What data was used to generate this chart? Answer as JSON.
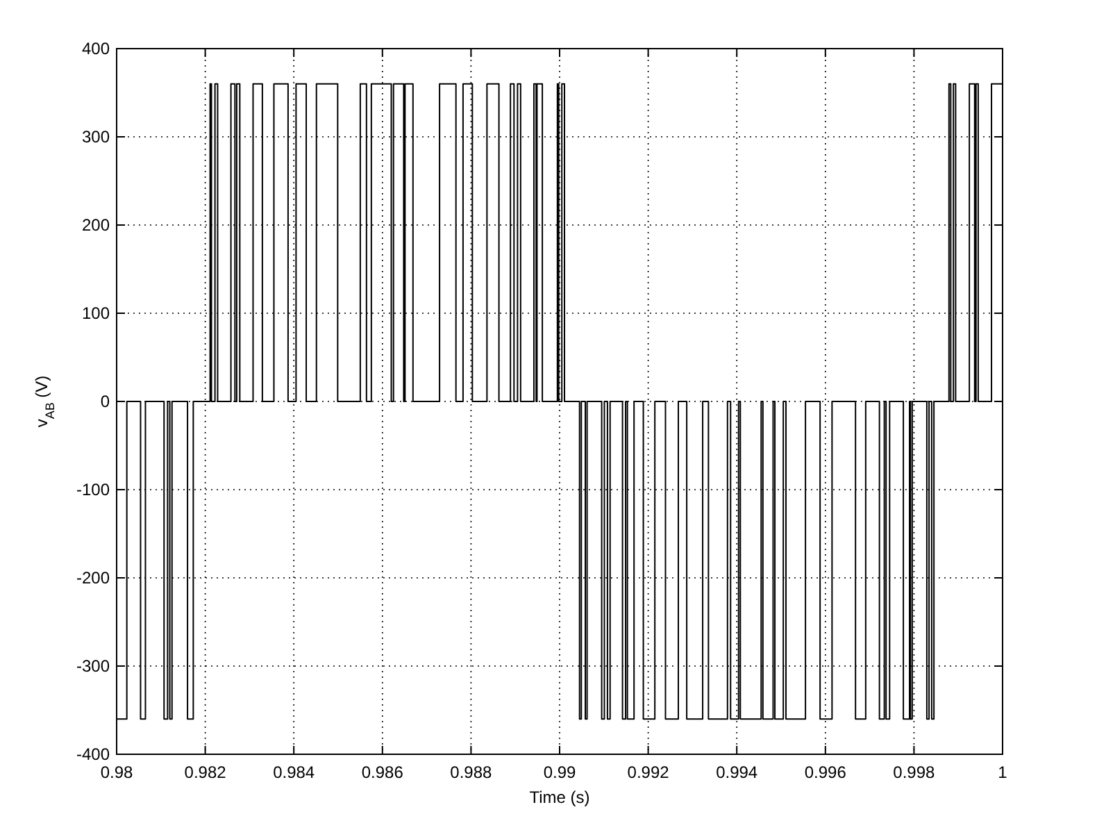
{
  "chart_data": {
    "type": "step",
    "xlabel": "Time (s)",
    "ylabel": "v$_{AB}$ (V)",
    "xlim": [
      0.98,
      1
    ],
    "xticks": [
      0.98,
      0.982,
      0.984,
      0.986,
      0.988,
      0.99,
      0.992,
      0.994,
      0.996,
      0.998,
      1
    ],
    "ylim": [
      -400,
      400
    ],
    "yticks": [
      -400,
      -300,
      -200,
      -100,
      0,
      100,
      200,
      300,
      400
    ],
    "grid": true,
    "marker": "none",
    "line_style": "solid",
    "series": [
      {
        "color": "#000000",
        "x": [
          0.98,
          0.98023,
          0.98054,
          0.98065,
          0.98107,
          0.98115,
          0.9812,
          0.98125,
          0.9816,
          0.98173,
          0.98211,
          0.98214,
          0.98222,
          0.98228,
          0.98258,
          0.98267,
          0.98271,
          0.98278,
          0.98308,
          0.98329,
          0.98355,
          0.98387,
          0.98405,
          0.98428,
          0.98451,
          0.98499,
          0.9855,
          0.98564,
          0.98575,
          0.9862,
          0.98625,
          0.98648,
          0.98651,
          0.98669,
          0.98729,
          0.98766,
          0.98782,
          0.98803,
          0.98836,
          0.98863,
          0.98889,
          0.98897,
          0.98905,
          0.98912,
          0.98942,
          0.98947,
          0.98949,
          0.98961,
          0.98995,
          0.98998,
          0.99005,
          0.99011,
          0.99045,
          0.99049,
          0.99058,
          0.99062,
          0.99095,
          0.99101,
          0.99108,
          0.99114,
          0.99142,
          0.99149,
          0.99153,
          0.99168,
          0.99189,
          0.99215,
          0.99239,
          0.99268,
          0.99287,
          0.99323,
          0.99336,
          0.99379,
          0.99386,
          0.99404,
          0.99408,
          0.99455,
          0.99459,
          0.99482,
          0.99486,
          0.99505,
          0.99511,
          0.99555,
          0.99588,
          0.99615,
          0.99668,
          0.99691,
          0.99722,
          0.99733,
          0.99737,
          0.99745,
          0.99776,
          0.9979,
          0.99792,
          0.99796,
          0.99829,
          0.99834,
          0.9984,
          0.99845,
          0.99879,
          0.99883,
          0.99889,
          0.99894,
          0.99925,
          0.99937,
          0.9994,
          0.99945,
          0.99975,
          1.0
        ],
        "values": [
          -360,
          0,
          -360,
          0,
          -360,
          0,
          -360,
          0,
          -360,
          0,
          360,
          0,
          360,
          0,
          360,
          0,
          360,
          0,
          360,
          0,
          360,
          0,
          360,
          0,
          360,
          0,
          360,
          0,
          360,
          0,
          360,
          0,
          360,
          0,
          360,
          0,
          360,
          0,
          360,
          0,
          360,
          0,
          360,
          0,
          360,
          0,
          360,
          0,
          360,
          0,
          360,
          0,
          -360,
          0,
          -360,
          0,
          -360,
          0,
          -360,
          0,
          -360,
          0,
          -360,
          0,
          -360,
          0,
          -360,
          0,
          -360,
          0,
          -360,
          0,
          -360,
          0,
          -360,
          0,
          -360,
          0,
          -360,
          0,
          -360,
          0,
          -360,
          0,
          -360,
          0,
          -360,
          0,
          -360,
          0,
          -360,
          0,
          -360,
          0,
          -360,
          0,
          -360,
          0,
          360,
          0,
          360,
          0,
          360,
          0,
          360,
          0,
          360,
          360
        ]
      }
    ]
  }
}
